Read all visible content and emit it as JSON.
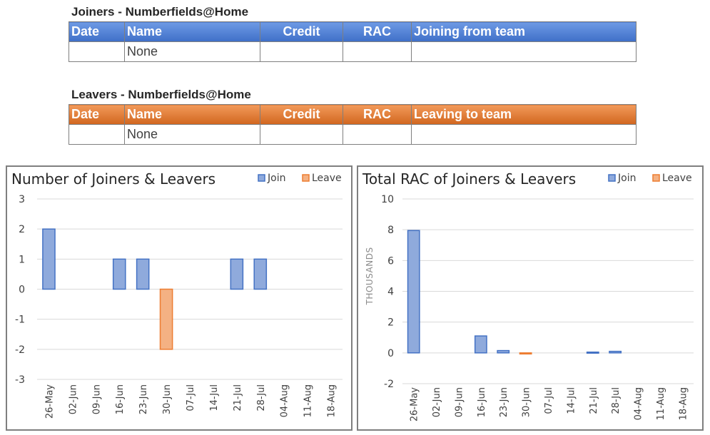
{
  "joiners": {
    "title": "Joiners - Numberfields@Home",
    "headers": [
      "Date",
      "Name",
      "Credit",
      "RAC",
      "Joining from team"
    ],
    "rows": [
      [
        "",
        "None",
        "",
        "",
        ""
      ]
    ]
  },
  "leavers": {
    "title": "Leavers - Numberfields@Home",
    "headers": [
      "Date",
      "Name",
      "Credit",
      "RAC",
      "Leaving to team"
    ],
    "rows": [
      [
        "",
        "None",
        "",
        "",
        ""
      ]
    ]
  },
  "colors": {
    "join": "#8faadc",
    "join_stroke": "#4472c4",
    "leave": "#f4b183",
    "leave_stroke": "#ed7d31"
  },
  "chart_data": [
    {
      "type": "bar",
      "title": "Number of Joiners & Leavers",
      "categories": [
        "26-May",
        "02-Jun",
        "09-Jun",
        "16-Jun",
        "23-Jun",
        "30-Jun",
        "07-Jul",
        "14-Jul",
        "21-Jul",
        "28-Jul",
        "04-Aug",
        "11-Aug",
        "18-Aug"
      ],
      "series": [
        {
          "name": "Join",
          "values": [
            2,
            0,
            0,
            1,
            1,
            0,
            0,
            0,
            1,
            1,
            0,
            0,
            0
          ]
        },
        {
          "name": "Leave",
          "values": [
            0,
            0,
            0,
            0,
            0,
            -2,
            0,
            0,
            0,
            0,
            0,
            0,
            0
          ]
        }
      ],
      "ylim": [
        -3,
        3
      ],
      "yticks": [
        3,
        2,
        1,
        0,
        -1,
        -2,
        -3
      ],
      "ylabel": "",
      "grid": true,
      "legend": "top-right"
    },
    {
      "type": "bar",
      "title": "Total RAC of Joiners & Leavers",
      "categories": [
        "26-May",
        "02-Jun",
        "09-Jun",
        "16-Jun",
        "23-Jun",
        "30-Jun",
        "07-Jul",
        "14-Jul",
        "21-Jul",
        "28-Jul",
        "04-Aug",
        "11-Aug",
        "18-Aug"
      ],
      "series": [
        {
          "name": "Join",
          "values": [
            7.95,
            0,
            0,
            1.1,
            0.15,
            0,
            0,
            0,
            0.05,
            0.1,
            0,
            0,
            0
          ]
        },
        {
          "name": "Leave",
          "values": [
            0,
            0,
            0,
            0,
            0,
            -0.05,
            0,
            0,
            0,
            0,
            0,
            0,
            0
          ]
        }
      ],
      "ylim": [
        -2,
        10
      ],
      "yticks": [
        10,
        8,
        6,
        4,
        2,
        0,
        -2
      ],
      "ylabel": "THOUSANDS",
      "grid": true,
      "legend": "top-right"
    }
  ]
}
